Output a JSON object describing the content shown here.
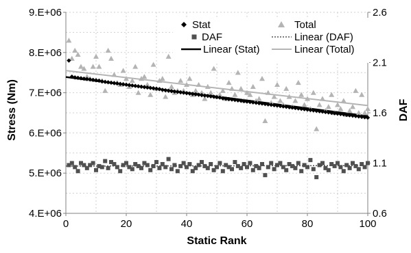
{
  "chart_data": {
    "type": "scatter",
    "xlabel": "Static Rank",
    "ylabel": "Stress (Nm)",
    "y2label": "DAF",
    "xlim": [
      0,
      100
    ],
    "ylim": [
      4000000,
      9000000
    ],
    "y2lim": [
      0.6,
      2.6
    ],
    "x_ticks": [
      0,
      20,
      40,
      60,
      80,
      100
    ],
    "x_tick_labels": [
      "0",
      "20",
      "40",
      "60",
      "80",
      "100"
    ],
    "y_ticks": [
      4000000,
      5000000,
      6000000,
      7000000,
      8000000,
      9000000
    ],
    "y_tick_labels": [
      "4.E+06",
      "5.E+06",
      "6.E+06",
      "7.E+06",
      "8.E+06",
      "9.E+06"
    ],
    "y2_ticks": [
      0.6,
      1.1,
      1.6,
      2.1,
      2.6
    ],
    "y2_tick_labels": [
      "0.6",
      "1.1",
      "1.6",
      "2.1",
      "2.6"
    ],
    "grid": true,
    "legend_position": "top-right",
    "legend": [
      "Stat",
      "Total",
      "DAF",
      "Linear (DAF)",
      "Linear (Stat)",
      "Linear (Total)"
    ],
    "colors": {
      "stat": "#000000",
      "total": "#b4b4b4",
      "daf": "#505050",
      "trend_stat": "#000000",
      "trend_total": "#b4b4b4",
      "trend_daf": "#505050",
      "grid": "#cfcfcf",
      "axis": "#808080"
    },
    "series": [
      {
        "name": "Stat",
        "axis": "left",
        "marker": "diamond",
        "x": [
          1,
          2,
          3,
          4,
          5,
          6,
          7,
          8,
          9,
          10,
          11,
          12,
          13,
          14,
          15,
          16,
          17,
          18,
          19,
          20,
          21,
          22,
          23,
          24,
          25,
          26,
          27,
          28,
          29,
          30,
          31,
          32,
          33,
          34,
          35,
          36,
          37,
          38,
          39,
          40,
          41,
          42,
          43,
          44,
          45,
          46,
          47,
          48,
          49,
          50,
          51,
          52,
          53,
          54,
          55,
          56,
          57,
          58,
          59,
          60,
          61,
          62,
          63,
          64,
          65,
          66,
          67,
          68,
          69,
          70,
          71,
          72,
          73,
          74,
          75,
          76,
          77,
          78,
          79,
          80,
          81,
          82,
          83,
          84,
          85,
          86,
          87,
          88,
          89,
          90,
          91,
          92,
          93,
          94,
          95,
          96,
          97,
          98,
          99,
          100
        ],
        "y": [
          7800000,
          7400000,
          7380000,
          7370000,
          7360000,
          7350000,
          7340000,
          7330000,
          7320000,
          7310000,
          7300000,
          7280000,
          7270000,
          7260000,
          7250000,
          7240000,
          7230000,
          7220000,
          7210000,
          7200000,
          7190000,
          7180000,
          7170000,
          7160000,
          7150000,
          7140000,
          7130000,
          7120000,
          7110000,
          7100000,
          7090000,
          7070000,
          7060000,
          7050000,
          7040000,
          7030000,
          7020000,
          7010000,
          7000000,
          6990000,
          6980000,
          6970000,
          6960000,
          6950000,
          6940000,
          6930000,
          6920000,
          6910000,
          6900000,
          6890000,
          6880000,
          6860000,
          6850000,
          6840000,
          6830000,
          6820000,
          6810000,
          6800000,
          6790000,
          6780000,
          6770000,
          6760000,
          6750000,
          6740000,
          6730000,
          6720000,
          6710000,
          6700000,
          6690000,
          6680000,
          6670000,
          6660000,
          6650000,
          6640000,
          6630000,
          6620000,
          6610000,
          6600000,
          6590000,
          6580000,
          6570000,
          6560000,
          6550000,
          6540000,
          6530000,
          6520000,
          6510000,
          6500000,
          6490000,
          6480000,
          6470000,
          6460000,
          6450000,
          6440000,
          6430000,
          6420000,
          6410000,
          6400000,
          6390000,
          6380000
        ]
      },
      {
        "name": "Total",
        "axis": "left",
        "marker": "triangle",
        "x": [
          1,
          2,
          3,
          4,
          5,
          6,
          7,
          8,
          9,
          10,
          11,
          12,
          13,
          14,
          15,
          16,
          17,
          18,
          19,
          20,
          21,
          22,
          23,
          24,
          25,
          26,
          27,
          28,
          29,
          30,
          31,
          32,
          33,
          34,
          35,
          36,
          37,
          38,
          39,
          40,
          41,
          42,
          43,
          44,
          45,
          46,
          47,
          48,
          49,
          50,
          51,
          52,
          53,
          54,
          55,
          56,
          57,
          58,
          59,
          60,
          61,
          62,
          63,
          64,
          65,
          66,
          67,
          68,
          69,
          70,
          71,
          72,
          73,
          74,
          75,
          76,
          77,
          78,
          79,
          80,
          81,
          82,
          83,
          84,
          85,
          86,
          87,
          88,
          89,
          90,
          91,
          92,
          93,
          94,
          95,
          96,
          97,
          98,
          99,
          100
        ],
        "y": [
          8300000,
          7850000,
          8050000,
          7950000,
          7650000,
          7600000,
          7400000,
          7350000,
          7650000,
          7900000,
          7650000,
          7300000,
          7050000,
          8050000,
          7850000,
          7450000,
          7250000,
          7200000,
          7550000,
          7350000,
          7150000,
          7300000,
          7650000,
          7000000,
          7350000,
          7400000,
          7200000,
          6950000,
          7700000,
          7100000,
          7300000,
          7350000,
          6900000,
          7900000,
          7150000,
          7000000,
          7050000,
          7300000,
          7050000,
          7200000,
          7350000,
          6950000,
          7050000,
          7200000,
          7000000,
          6850000,
          7150000,
          7000000,
          7600000,
          6900000,
          6950000,
          7050000,
          6850000,
          7250000,
          7100000,
          6950000,
          7500000,
          7100000,
          6800000,
          7000000,
          6950000,
          7150000,
          6800000,
          6850000,
          7350000,
          6300000,
          7000000,
          6750000,
          6900000,
          7200000,
          6800000,
          6700000,
          7100000,
          6900000,
          6650000,
          6800000,
          7250000,
          6950000,
          6700000,
          6850000,
          6600000,
          7000000,
          6100000,
          6700000,
          6850000,
          6550000,
          6650000,
          6950000,
          6500000,
          6700000,
          6600000,
          6800000,
          6450000,
          6550000,
          6650000,
          7050000,
          6500000,
          6950000,
          6500000,
          6600000
        ]
      },
      {
        "name": "DAF",
        "axis": "right",
        "marker": "square",
        "x": [
          1,
          2,
          3,
          4,
          5,
          6,
          7,
          8,
          9,
          10,
          11,
          12,
          13,
          14,
          15,
          16,
          17,
          18,
          19,
          20,
          21,
          22,
          23,
          24,
          25,
          26,
          27,
          28,
          29,
          30,
          31,
          32,
          33,
          34,
          35,
          36,
          37,
          38,
          39,
          40,
          41,
          42,
          43,
          44,
          45,
          46,
          47,
          48,
          49,
          50,
          51,
          52,
          53,
          54,
          55,
          56,
          57,
          58,
          59,
          60,
          61,
          62,
          63,
          64,
          65,
          66,
          67,
          68,
          69,
          70,
          71,
          72,
          73,
          74,
          75,
          76,
          77,
          78,
          79,
          80,
          81,
          82,
          83,
          84,
          85,
          86,
          87,
          88,
          89,
          90,
          91,
          92,
          93,
          94,
          95,
          96,
          97,
          98,
          99,
          100
        ],
        "y": [
          1.08,
          1.1,
          1.06,
          1.02,
          1.1,
          1.08,
          1.05,
          1.08,
          1.1,
          1.03,
          1.07,
          1.06,
          1.12,
          1.05,
          1.11,
          1.09,
          1.06,
          1.02,
          1.08,
          1.1,
          1.06,
          1.04,
          1.09,
          1.07,
          1.05,
          1.1,
          1.08,
          1.03,
          1.07,
          1.11,
          1.05,
          1.09,
          1.06,
          1.14,
          1.04,
          1.08,
          1.02,
          1.07,
          1.1,
          1.06,
          1.09,
          1.02,
          1.05,
          1.08,
          1.11,
          1.07,
          1.05,
          1.09,
          1.03,
          1.06,
          1.1,
          1.02,
          1.08,
          1.06,
          1.04,
          1.11,
          1.07,
          1.05,
          1.09,
          1.06,
          1.1,
          1.03,
          1.07,
          1.05,
          1.09,
          0.98,
          1.06,
          1.1,
          1.04,
          1.08,
          1.1,
          1.06,
          1.03,
          1.09,
          1.07,
          1.05,
          1.1,
          1.02,
          1.08,
          1.06,
          1.13,
          1.04,
          0.96,
          1.08,
          1.1,
          1.05,
          1.03,
          1.09,
          1.07,
          1.1,
          1.06,
          1.02,
          1.08,
          1.05,
          1.1,
          1.07,
          1.04,
          1.09,
          1.06,
          1.1
        ]
      }
    ],
    "trendlines": [
      {
        "name": "Linear (Stat)",
        "axis": "left",
        "style": "solid",
        "y_at_x0": 7390000,
        "y_at_x100": 6420000
      },
      {
        "name": "Linear (Total)",
        "axis": "left",
        "style": "solid",
        "y_at_x0": 7550000,
        "y_at_x100": 6680000
      },
      {
        "name": "Linear (DAF)",
        "axis": "right",
        "style": "dotted",
        "y_at_x0": 1.07,
        "y_at_x100": 1.075
      }
    ]
  }
}
